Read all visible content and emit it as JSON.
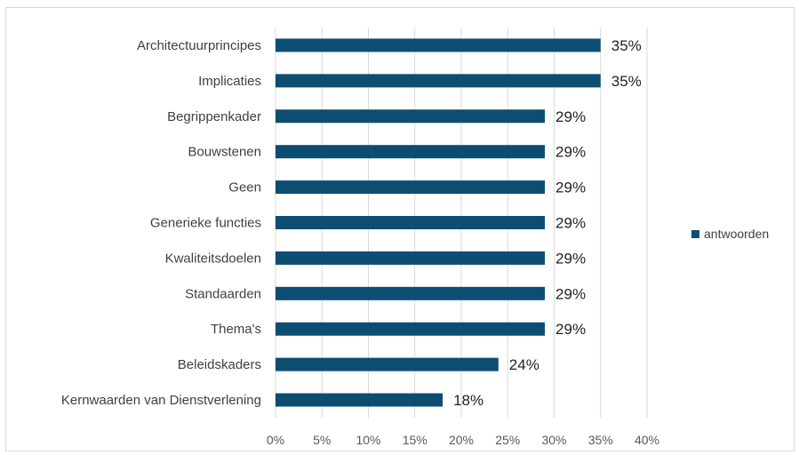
{
  "chart_data": {
    "type": "bar",
    "orientation": "horizontal",
    "categories": [
      "Architectuurprincipes",
      "Implicaties",
      "Begrippenkader",
      "Bouwstenen",
      "Geen",
      "Generieke functies",
      "Kwaliteitsdoelen",
      "Standaarden",
      "Thema's",
      "Beleidskaders",
      "Kernwaarden van Dienstverlening"
    ],
    "series": [
      {
        "name": "antwoorden",
        "values": [
          35,
          35,
          29,
          29,
          29,
          29,
          29,
          29,
          29,
          24,
          18
        ],
        "data_labels": [
          "35%",
          "35%",
          "29%",
          "29%",
          "29%",
          "29%",
          "29%",
          "29%",
          "29%",
          "24%",
          "18%"
        ],
        "color": "#0e4d72"
      }
    ],
    "x_ticks": [
      "0%",
      "5%",
      "10%",
      "15%",
      "20%",
      "25%",
      "30%",
      "35%",
      "40%"
    ],
    "xlim": [
      0,
      40
    ],
    "grid": true,
    "legend": "right",
    "title": "",
    "xlabel": "",
    "ylabel": ""
  }
}
